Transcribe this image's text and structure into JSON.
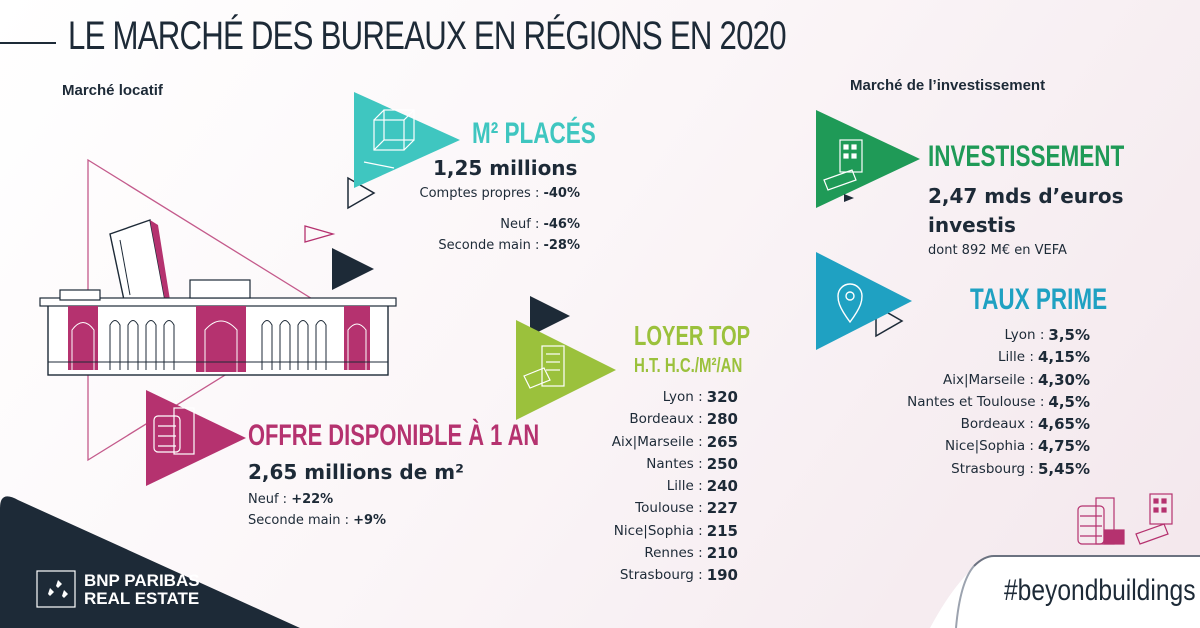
{
  "title": "LE MARCHÉ DES BUREAUX EN RÉGIONS EN 2020",
  "sections": {
    "rental": "Marché locatif",
    "investment": "Marché de l’investissement"
  },
  "m2_places": {
    "heading": "M² PLACÉS",
    "value": "1,25 millions",
    "details": [
      {
        "label": "Comptes propres : ",
        "value": "-40%"
      },
      {
        "label": "Neuf : ",
        "value": "-46%"
      },
      {
        "label": "Seconde main : ",
        "value": "-28%"
      }
    ]
  },
  "offre": {
    "heading": "OFFRE DISPONIBLE À 1 AN",
    "value": "2,65 millions de m²",
    "details": [
      {
        "label": "Neuf : ",
        "value": "+22%"
      },
      {
        "label": "Seconde main : ",
        "value": "+9%"
      }
    ]
  },
  "loyer": {
    "heading": "LOYER TOP",
    "subheading": "H.T. H.C./M²/AN",
    "rows": [
      {
        "city": "Lyon :",
        "value": "320"
      },
      {
        "city": "Bordeaux :",
        "value": "280"
      },
      {
        "city": "Aix|Marseile :",
        "value": "265"
      },
      {
        "city": "Nantes :",
        "value": "250"
      },
      {
        "city": "Lille :",
        "value": "240"
      },
      {
        "city": "Toulouse :",
        "value": "227"
      },
      {
        "city": "Nice|Sophia :",
        "value": "215"
      },
      {
        "city": "Rennes :",
        "value": "210"
      },
      {
        "city": "Strasbourg :",
        "value": "190"
      }
    ]
  },
  "investissement": {
    "heading": "INVESTISSEMENT",
    "value_line1": "2,47 mds d’euros",
    "value_line2": "investis",
    "note": "dont 892 M€ en VEFA"
  },
  "taux": {
    "heading": "TAUX PRIME",
    "rows": [
      {
        "city": "Lyon :",
        "value": "3,5%"
      },
      {
        "city": "Lille :",
        "value": "4,15%"
      },
      {
        "city": "Aix|Marseile :",
        "value": "4,30%"
      },
      {
        "city": "Nantes et Toulouse :",
        "value": "4,5%"
      },
      {
        "city": "Bordeaux :",
        "value": "4,65%"
      },
      {
        "city": "Nice|Sophia :",
        "value": "4,75%"
      },
      {
        "city": "Strasbourg :",
        "value": "5,45%"
      }
    ]
  },
  "brand": {
    "line1": "BNP PARIBAS",
    "line2": "REAL ESTATE"
  },
  "hashtag": "#beyondbuildings",
  "colors": {
    "navy": "#1d2a37",
    "teal": "#3fc6c0",
    "magenta": "#b5326f",
    "lime": "#9bc13c",
    "green": "#1f9a57",
    "blue": "#1fa1c2"
  },
  "icons": [
    "cube-icon",
    "building-icon",
    "price-tag-icon",
    "euro-ticket-icon",
    "location-pin-icon",
    "bnp-stars-icon"
  ]
}
